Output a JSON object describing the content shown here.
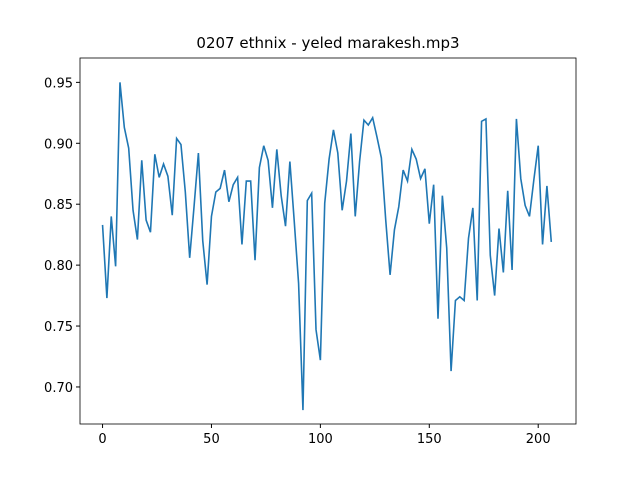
{
  "chart_data": {
    "type": "line",
    "title": "0207 ethnix - yeled marakesh.mp3",
    "x": [
      0,
      2,
      4,
      6,
      8,
      10,
      12,
      14,
      16,
      18,
      20,
      22,
      24,
      26,
      28,
      30,
      32,
      34,
      36,
      38,
      40,
      42,
      44,
      46,
      48,
      50,
      52,
      54,
      56,
      58,
      60,
      62,
      64,
      66,
      68,
      70,
      72,
      74,
      76,
      78,
      80,
      82,
      84,
      86,
      88,
      90,
      92,
      94,
      96,
      98,
      100,
      102,
      104,
      106,
      108,
      110,
      112,
      114,
      116,
      118,
      120,
      122,
      124,
      126,
      128,
      130,
      132,
      134,
      136,
      138,
      140,
      142,
      144,
      146,
      148,
      150,
      152,
      154,
      156,
      158,
      160,
      162,
      164,
      166,
      168,
      170,
      172,
      174,
      176,
      178,
      180,
      182,
      184,
      186,
      188,
      190,
      192,
      194,
      196,
      198,
      200,
      202,
      204,
      206
    ],
    "series": [
      {
        "color": "#1f77b4",
        "values": [
          0.833,
          0.773,
          0.84,
          0.799,
          0.95,
          0.913,
          0.896,
          0.845,
          0.821,
          0.886,
          0.837,
          0.827,
          0.891,
          0.872,
          0.883,
          0.873,
          0.841,
          0.904,
          0.899,
          0.86,
          0.806,
          0.848,
          0.892,
          0.82,
          0.784,
          0.84,
          0.86,
          0.863,
          0.878,
          0.852,
          0.866,
          0.872,
          0.817,
          0.869,
          0.869,
          0.804,
          0.88,
          0.898,
          0.886,
          0.847,
          0.895,
          0.857,
          0.832,
          0.885,
          0.836,
          0.785,
          0.681,
          0.853,
          0.859,
          0.747,
          0.722,
          0.851,
          0.887,
          0.911,
          0.892,
          0.845,
          0.869,
          0.908,
          0.84,
          0.885,
          0.919,
          0.915,
          0.921,
          0.905,
          0.888,
          0.837,
          0.792,
          0.829,
          0.848,
          0.878,
          0.869,
          0.895,
          0.887,
          0.871,
          0.879,
          0.834,
          0.866,
          0.756,
          0.857,
          0.814,
          0.713,
          0.771,
          0.774,
          0.771,
          0.822,
          0.847,
          0.771,
          0.918,
          0.92,
          0.808,
          0.775,
          0.83,
          0.794,
          0.861,
          0.796,
          0.92,
          0.871,
          0.849,
          0.84,
          0.87,
          0.898,
          0.817,
          0.865,
          0.819
        ]
      }
    ],
    "xlim": [
      -10.35,
      217.35
    ],
    "ylim": [
      0.6696,
      0.97
    ],
    "xticks": [
      0,
      50,
      100,
      150,
      200
    ],
    "yticks": [
      {
        "value": 0.7,
        "label": "0.70"
      },
      0.75,
      {
        "value": 0.8,
        "label": "0.80"
      },
      0.85,
      {
        "value": 0.9,
        "label": "0.90"
      },
      0.95
    ]
  }
}
